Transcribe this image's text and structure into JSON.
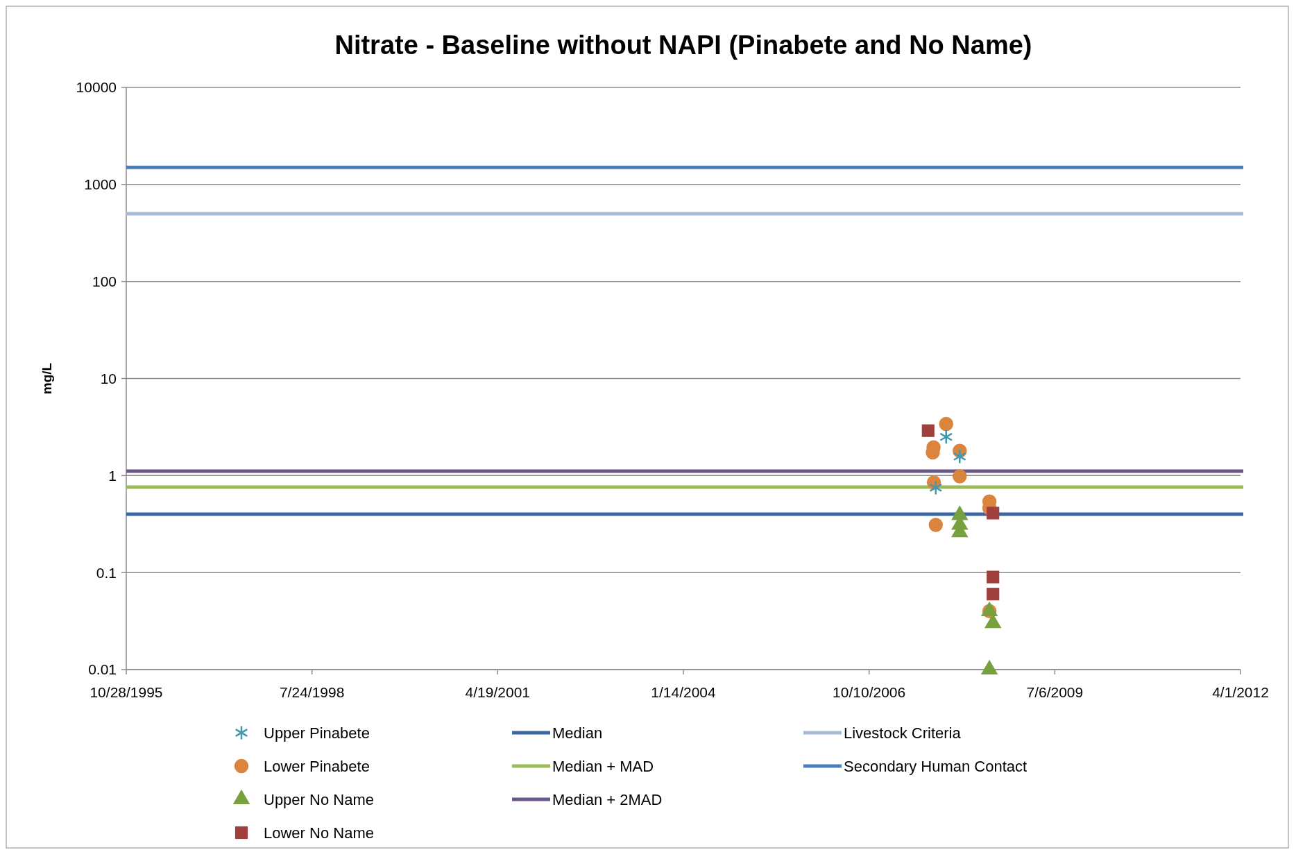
{
  "chart_data": {
    "type": "scatter",
    "title": "Nitrate - Baseline without NAPI (Pinabete and No Name)",
    "ylabel": "mg/L",
    "log": "y",
    "grid": "y",
    "legend": "bottom",
    "xlim": [
      "1995-10-28",
      "2012-04-01"
    ],
    "xticks": [
      {
        "value": "1995-10-28",
        "label": "10/28/1995"
      },
      {
        "value": "1998-07-24",
        "label": "7/24/1998"
      },
      {
        "value": "2001-04-19",
        "label": "4/19/2001"
      },
      {
        "value": "2004-01-14",
        "label": "1/14/2004"
      },
      {
        "value": "2006-10-10",
        "label": "10/10/2006"
      },
      {
        "value": "2009-07-06",
        "label": "7/6/2009"
      },
      {
        "value": "2012-04-01",
        "label": "4/1/2012"
      }
    ],
    "ylim": [
      0.01,
      10000
    ],
    "yticks": [
      0.01,
      0.1,
      1,
      10,
      100,
      1000,
      10000
    ],
    "series": [
      {
        "name": "Upper Pinabete",
        "color": "#4198af",
        "marker": "cross",
        "x": [
          "2007-11-29",
          "2008-02-10",
          "2007-10-04"
        ],
        "values": [
          2.5,
          1.57,
          0.75
        ]
      },
      {
        "name": "Lower Pinabete",
        "color": "#db843d",
        "marker": "circle",
        "x": [
          "2007-11-29",
          "2007-09-22",
          "2007-09-18",
          "2008-02-10",
          "2008-02-10",
          "2007-09-24",
          "2007-10-04",
          "2008-07-19",
          "2008-07-19",
          "2008-07-19"
        ],
        "values": [
          3.4,
          1.95,
          1.73,
          1.8,
          0.98,
          0.85,
          0.31,
          0.54,
          0.46,
          0.04
        ]
      },
      {
        "name": "Upper No Name",
        "color": "#77a03f",
        "marker": "triangle",
        "x": [
          "2008-02-10",
          "2008-02-10",
          "2008-02-10",
          "2008-07-19",
          "2008-07-19",
          "2008-08-07"
        ],
        "values": [
          0.39,
          0.31,
          0.26,
          0.04,
          0.01,
          0.03
        ]
      },
      {
        "name": "Lower No Name",
        "color": "#a0403d",
        "marker": "square",
        "x": [
          "2007-08-24",
          "2008-08-07",
          "2008-08-07",
          "2008-08-07"
        ],
        "values": [
          2.9,
          0.41,
          0.09,
          0.06
        ]
      }
    ],
    "ref_lines": [
      {
        "axis": "y",
        "value": 0.4,
        "label": "Median",
        "color": "#3b67a1"
      },
      {
        "axis": "y",
        "value": 0.76,
        "label": "Median + MAD",
        "color": "#9bbb59"
      },
      {
        "axis": "y",
        "value": 1.11,
        "label": "Median + 2MAD",
        "color": "#6b5689"
      },
      {
        "axis": "y",
        "value": 500,
        "label": "Livestock Criteria",
        "color": "#a8bad8"
      },
      {
        "axis": "y",
        "value": 1500,
        "label": "Secondary Human Contact",
        "color": "#4a7ebf"
      }
    ]
  }
}
